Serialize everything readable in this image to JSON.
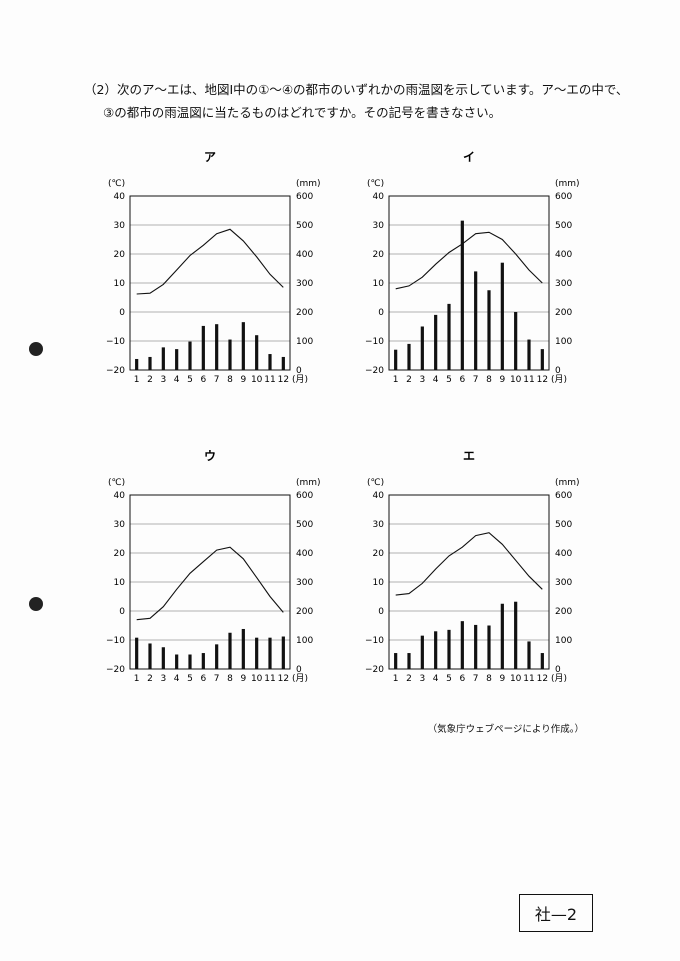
{
  "question": {
    "line1": "（2）次のア～エは、地図Ⅰ中の①～④の都市のいずれかの雨温図を示しています。ア～エの中で、",
    "line2": "③の都市の雨温図に当たるものはどれですか。その記号を書きなさい。"
  },
  "source_note": "（気象庁ウェブページにより作成。）",
  "page_label": "社—2",
  "chart_data": [
    {
      "type": "bar",
      "title": "ア",
      "left_unit": "(℃)",
      "right_unit": "(mm)",
      "x_unit": "(月)",
      "categories": [
        "1",
        "2",
        "3",
        "4",
        "5",
        "6",
        "7",
        "8",
        "9",
        "10",
        "11",
        "12"
      ],
      "temp_ticks": [
        "40",
        "30",
        "20",
        "10",
        "0",
        "−10",
        "−20"
      ],
      "precip_ticks": [
        "600",
        "500",
        "400",
        "300",
        "200",
        "100",
        "0"
      ],
      "ylim_temp": [
        -20,
        40
      ],
      "ylim_precip": [
        0,
        600
      ],
      "series": [
        {
          "type": "line",
          "values": [
            6.2,
            6.5,
            9.5,
            14.5,
            19.5,
            23.0,
            27.0,
            28.5,
            24.5,
            19.0,
            13.0,
            8.5
          ]
        },
        {
          "type": "bar",
          "values": [
            38,
            45,
            78,
            72,
            98,
            152,
            158,
            105,
            165,
            120,
            55,
            45
          ]
        }
      ]
    },
    {
      "type": "bar",
      "title": "イ",
      "left_unit": "(℃)",
      "right_unit": "(mm)",
      "x_unit": "(月)",
      "categories": [
        "1",
        "2",
        "3",
        "4",
        "5",
        "6",
        "7",
        "8",
        "9",
        "10",
        "11",
        "12"
      ],
      "temp_ticks": [
        "40",
        "30",
        "20",
        "10",
        "0",
        "−10",
        "−20"
      ],
      "precip_ticks": [
        "600",
        "500",
        "400",
        "300",
        "200",
        "100",
        "0"
      ],
      "ylim_temp": [
        -20,
        40
      ],
      "ylim_precip": [
        0,
        600
      ],
      "series": [
        {
          "type": "line",
          "values": [
            8.0,
            9.0,
            12.0,
            16.5,
            20.5,
            23.5,
            27.0,
            27.5,
            25.0,
            20.0,
            14.5,
            10.0
          ]
        },
        {
          "type": "bar",
          "values": [
            70,
            90,
            150,
            190,
            228,
            515,
            340,
            275,
            370,
            200,
            105,
            72
          ]
        }
      ]
    },
    {
      "type": "bar",
      "title": "ウ",
      "left_unit": "(℃)",
      "right_unit": "(mm)",
      "x_unit": "(月)",
      "categories": [
        "1",
        "2",
        "3",
        "4",
        "5",
        "6",
        "7",
        "8",
        "9",
        "10",
        "11",
        "12"
      ],
      "temp_ticks": [
        "40",
        "30",
        "20",
        "10",
        "0",
        "−10",
        "−20"
      ],
      "precip_ticks": [
        "600",
        "500",
        "400",
        "300",
        "200",
        "100",
        "0"
      ],
      "ylim_temp": [
        -20,
        40
      ],
      "ylim_precip": [
        0,
        600
      ],
      "series": [
        {
          "type": "line",
          "values": [
            -3.0,
            -2.5,
            1.5,
            7.5,
            13.0,
            17.0,
            21.0,
            22.0,
            18.0,
            11.5,
            5.0,
            -0.5
          ]
        },
        {
          "type": "bar",
          "values": [
            108,
            88,
            75,
            50,
            50,
            55,
            85,
            125,
            138,
            108,
            108,
            112
          ]
        }
      ]
    },
    {
      "type": "bar",
      "title": "エ",
      "left_unit": "(℃)",
      "right_unit": "(mm)",
      "x_unit": "(月)",
      "categories": [
        "1",
        "2",
        "3",
        "4",
        "5",
        "6",
        "7",
        "8",
        "9",
        "10",
        "11",
        "12"
      ],
      "temp_ticks": [
        "40",
        "30",
        "20",
        "10",
        "0",
        "−10",
        "−20"
      ],
      "precip_ticks": [
        "600",
        "500",
        "400",
        "300",
        "200",
        "100",
        "0"
      ],
      "ylim_temp": [
        -20,
        40
      ],
      "ylim_precip": [
        0,
        600
      ],
      "series": [
        {
          "type": "line",
          "values": [
            5.5,
            6.0,
            9.5,
            14.5,
            19.0,
            22.0,
            26.0,
            27.0,
            23.0,
            17.5,
            12.0,
            7.5
          ]
        },
        {
          "type": "bar",
          "values": [
            55,
            55,
            115,
            130,
            135,
            165,
            152,
            150,
            225,
            232,
            95,
            55
          ]
        }
      ]
    }
  ]
}
